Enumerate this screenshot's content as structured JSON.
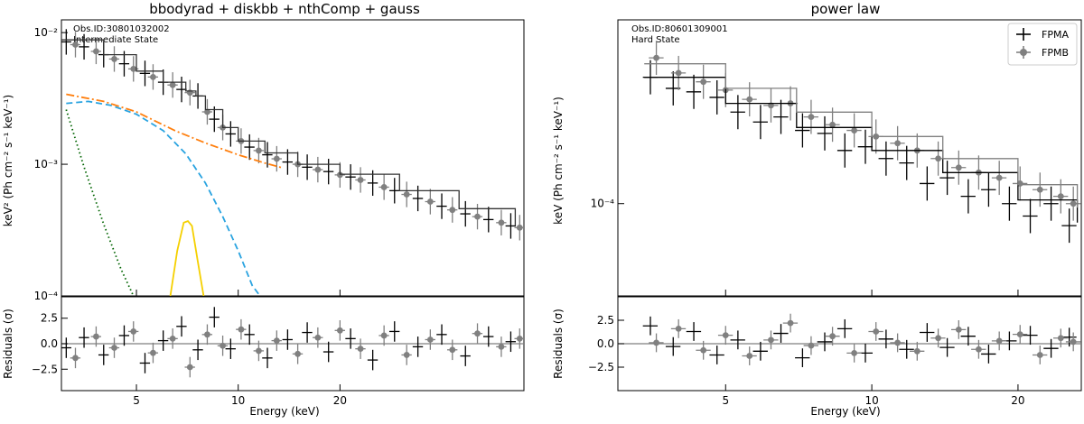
{
  "chart_data": [
    {
      "type": "scatter",
      "title": "bbodyrad + diskbb + nthComp + gauss",
      "annotation": [
        "Obs.ID:30801032002",
        "Intermediate State"
      ],
      "xlabel": "Energy (keV)",
      "ylabel": "keV² (Ph cm⁻² s⁻¹ keV⁻¹)",
      "residual_ylabel": "Residuals (σ)",
      "xscale": "log",
      "yscale": "log",
      "xlim": [
        3.0,
        70.0
      ],
      "ylim": [
        0.0001,
        0.0125
      ],
      "x_ticks": [
        5,
        10,
        20
      ],
      "y_ticks": [
        {
          "value": 0.01,
          "label": "10⁻²"
        },
        {
          "value": 0.001,
          "label": "10⁻³"
        },
        {
          "value": 0.0001,
          "label": "10⁻⁴"
        }
      ],
      "residual_ylim": [
        -4.6,
        4.6
      ],
      "residual_ticks": [
        {
          "value": 2.5,
          "label": "2.5"
        },
        {
          "value": 0.0,
          "label": "0.0"
        },
        {
          "value": -2.5,
          "label": "−2.5"
        }
      ],
      "series": [
        {
          "role": "data",
          "color": "#000000",
          "marker": "cross",
          "x": [
            3.1,
            3.5,
            4.0,
            4.6,
            5.3,
            6.0,
            6.8,
            7.6,
            8.5,
            9.5,
            10.8,
            12.2,
            14.0,
            16.0,
            18.5,
            21.5,
            25.0,
            29.0,
            34.0,
            40.0,
            47.0,
            55.0,
            64.0
          ],
          "y": [
            0.0085,
            0.0078,
            0.0068,
            0.0058,
            0.0049,
            0.0042,
            0.0037,
            0.0033,
            0.0022,
            0.0017,
            0.00135,
            0.00118,
            0.00104,
            0.00095,
            0.00088,
            0.0008,
            0.00072,
            0.00063,
            0.00055,
            0.00048,
            0.00042,
            0.00038,
            0.00034
          ],
          "residuals": [
            -0.4,
            0.6,
            -1.1,
            0.8,
            -1.9,
            0.3,
            1.7,
            -0.6,
            2.6,
            -0.5,
            0.9,
            -1.4,
            0.4,
            1.1,
            -0.8,
            0.5,
            -1.6,
            1.2,
            -0.3,
            0.9,
            -1.2,
            0.7,
            0.2
          ]
        },
        {
          "role": "data",
          "color": "#808080",
          "marker": "circle",
          "x": [
            3.3,
            3.8,
            4.3,
            4.9,
            5.6,
            6.4,
            7.2,
            8.1,
            9.0,
            10.2,
            11.5,
            13.0,
            15.0,
            17.2,
            20.0,
            23.0,
            27.0,
            31.5,
            37.0,
            43.0,
            51.0,
            60.0,
            68.0
          ],
          "y": [
            0.0081,
            0.0072,
            0.0063,
            0.0053,
            0.0046,
            0.004,
            0.0035,
            0.0025,
            0.0019,
            0.0015,
            0.00127,
            0.0011,
            0.001,
            0.00091,
            0.00083,
            0.00076,
            0.00067,
            0.00059,
            0.00052,
            0.00045,
            0.0004,
            0.00036,
            0.00033
          ],
          "residuals": [
            -1.4,
            0.7,
            -0.4,
            1.2,
            -0.9,
            0.5,
            -2.3,
            0.9,
            -0.2,
            1.4,
            -0.7,
            0.3,
            -1.0,
            0.6,
            1.3,
            -0.5,
            0.8,
            -1.1,
            0.4,
            -0.6,
            1.0,
            -0.3,
            0.5
          ]
        },
        {
          "role": "model",
          "color": "#333333",
          "style": "steps",
          "x": [
            3.0,
            4.0,
            5.0,
            6.0,
            7.0,
            7.5,
            8.0,
            9.0,
            10.0,
            12.0,
            15.0,
            20.0,
            30.0,
            45.0,
            66.0
          ],
          "y": [
            0.0088,
            0.0068,
            0.0051,
            0.0042,
            0.0036,
            0.0033,
            0.0026,
            0.0019,
            0.0015,
            0.00122,
            0.001,
            0.00084,
            0.00063,
            0.00046,
            0.00034
          ]
        },
        {
          "role": "component",
          "color": "#006400",
          "style": "dotted",
          "x": [
            3.1,
            3.5,
            4.0,
            4.5,
            4.9
          ],
          "y": [
            0.0026,
            0.00095,
            0.00035,
            0.00016,
            0.0001
          ]
        },
        {
          "role": "component",
          "color": "#29a3e0",
          "style": "dashed",
          "x": [
            3.1,
            3.6,
            4.2,
            5.0,
            6.0,
            7.0,
            8.0,
            9.0,
            10.0,
            11.0,
            11.6
          ],
          "y": [
            0.0029,
            0.003,
            0.0028,
            0.0024,
            0.0018,
            0.0012,
            0.00072,
            0.0004,
            0.00022,
            0.00012,
            0.0001
          ]
        },
        {
          "role": "component",
          "color": "#ff7f0e",
          "style": "dashdot",
          "x": [
            3.1,
            4.0,
            5.0,
            6.5,
            8.0,
            10.0,
            12.0,
            13.5
          ],
          "y": [
            0.0034,
            0.003,
            0.0025,
            0.0018,
            0.00145,
            0.00118,
            0.00102,
            0.00094
          ]
        },
        {
          "role": "component",
          "color": "#f5d000",
          "style": "solid",
          "x": [
            6.3,
            6.6,
            6.9,
            7.1,
            7.3,
            7.6,
            7.9
          ],
          "y": [
            0.0001,
            0.00022,
            0.00036,
            0.00037,
            0.00034,
            0.00018,
            0.0001
          ]
        }
      ]
    },
    {
      "type": "scatter",
      "title": "power law",
      "annotation": [
        "Obs.ID:80601309001",
        "Hard State"
      ],
      "xlabel": "Energy (keV)",
      "ylabel": "keV (Ph cm⁻² s⁻¹ keV⁻¹)",
      "residual_ylabel": "Residuals (σ)",
      "xscale": "log",
      "yscale": "log",
      "xlim": [
        3.0,
        27.0
      ],
      "ylim": [
        3e-05,
        0.0011
      ],
      "x_ticks": [
        5,
        10,
        20
      ],
      "y_ticks": [
        {
          "value": 0.0001,
          "label": "10⁻⁴"
        }
      ],
      "residual_ylim": [
        -5.0,
        5.0
      ],
      "residual_ticks": [
        {
          "value": 2.5,
          "label": "2.5"
        },
        {
          "value": 0.0,
          "label": "0.0"
        },
        {
          "value": -2.5,
          "label": "−2.5"
        }
      ],
      "legend": {
        "position": "top-right",
        "entries": [
          {
            "label": "FPMA",
            "color": "#000000",
            "marker": "cross"
          },
          {
            "label": "FPMB",
            "color": "#808080",
            "marker": "circle"
          }
        ]
      },
      "series": [
        {
          "name": "FPMA",
          "color": "#000000",
          "marker": "cross",
          "x": [
            3.5,
            3.9,
            4.3,
            4.8,
            5.3,
            5.9,
            6.5,
            7.2,
            8.0,
            8.8,
            9.7,
            10.7,
            11.8,
            13.0,
            14.3,
            15.8,
            17.4,
            19.2,
            21.2,
            23.4,
            25.5
          ],
          "y": [
            0.00052,
            0.00045,
            0.00043,
            0.0004,
            0.00033,
            0.00029,
            0.00031,
            0.00026,
            0.00025,
            0.0002,
            0.00021,
            0.00018,
            0.00017,
            0.00013,
            0.00014,
            0.00011,
            0.00012,
            0.0001,
            8.5e-05,
            0.0001,
            7.5e-05
          ],
          "residuals": [
            1.9,
            -0.3,
            1.3,
            -1.2,
            0.4,
            -0.8,
            1.1,
            -1.5,
            0.2,
            1.6,
            -1.0,
            0.5,
            -0.6,
            1.2,
            -0.4,
            0.8,
            -1.1,
            0.3,
            0.9,
            -0.5,
            0.7
          ]
        },
        {
          "name": "FPMB",
          "color": "#808080",
          "marker": "circle",
          "x": [
            3.6,
            4.0,
            4.5,
            5.0,
            5.6,
            6.2,
            6.8,
            7.5,
            8.3,
            9.2,
            10.2,
            11.3,
            12.4,
            13.7,
            15.1,
            16.6,
            18.3,
            20.2,
            22.2,
            24.5,
            26.0
          ],
          "y": [
            0.00067,
            0.00055,
            0.00049,
            0.00044,
            0.00039,
            0.00036,
            0.00037,
            0.00031,
            0.00028,
            0.00026,
            0.00024,
            0.00022,
            0.0002,
            0.00018,
            0.00016,
            0.00015,
            0.00014,
            0.00013,
            0.00012,
            0.00011,
            0.0001
          ],
          "residuals": [
            0.1,
            1.6,
            -0.7,
            0.9,
            -1.3,
            0.4,
            2.2,
            -0.2,
            0.8,
            -1.0,
            1.3,
            0.1,
            -0.8,
            0.6,
            1.5,
            -0.6,
            0.3,
            1.0,
            -1.2,
            0.6,
            0.2
          ]
        },
        {
          "role": "model",
          "color": "#000000",
          "style": "steps",
          "x": [
            3.4,
            5.0,
            7.0,
            10.0,
            14.0,
            20.0,
            26.5
          ],
          "y": [
            0.00052,
            0.00037,
            0.00027,
            0.0002,
            0.00015,
            0.000105,
            7.8e-05
          ]
        },
        {
          "role": "model",
          "color": "#808080",
          "style": "steps",
          "x": [
            3.4,
            5.0,
            7.0,
            10.0,
            14.0,
            20.0,
            26.5
          ],
          "y": [
            0.00062,
            0.00045,
            0.00033,
            0.00024,
            0.00018,
            0.000128,
            9.5e-05
          ]
        }
      ]
    }
  ]
}
